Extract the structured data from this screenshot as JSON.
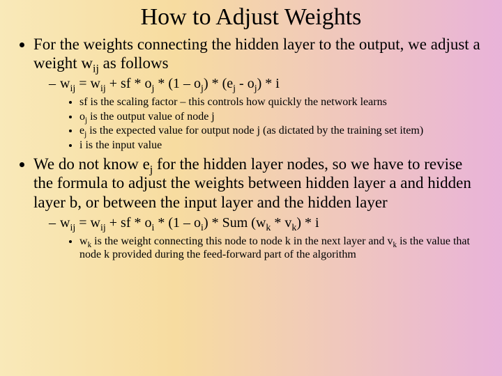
{
  "title": "How to Adjust Weights",
  "b1": "For the weights connecting the hidden layer to the output, we adjust a weight w",
  "b1_sub": "ij",
  "b1_tail": " as follows",
  "f1_a": "w",
  "f1_as": "ij",
  "f1_b": " = w",
  "f1_bs": "ij",
  "f1_c": " + sf * o",
  "f1_cs": "j",
  "f1_d": " * (1 – o",
  "f1_ds": "j",
  "f1_e": ") * (e",
  "f1_es": "j",
  "f1_f": " - o",
  "f1_fs": "j",
  "f1_g": ") * i",
  "s1": "sf is the scaling factor – this controls how quickly the network learns",
  "s2a": "o",
  "s2s": "j",
  "s2b": " is the output value of node j",
  "s3a": "e",
  "s3s": "j",
  "s3b": " is the expected value for output node j (as dictated by the training set item)",
  "s4": "i is the input value",
  "b2a": "We do not know e",
  "b2s": "j",
  "b2b": " for the hidden layer nodes, so we have to revise the formula to adjust the weights between hidden layer a and hidden layer b, or between the input layer and the hidden layer",
  "f2_a": "w",
  "f2_as": "ij",
  "f2_b": " = w",
  "f2_bs": "ij",
  "f2_c": " + sf * o",
  "f2_cs": "i",
  "f2_d": " * (1 – o",
  "f2_ds": "i",
  "f2_e": ") * Sum (w",
  "f2_es": "k",
  "f2_f": " * v",
  "f2_fs": "k",
  "f2_g": ") * i",
  "s5a": "w",
  "s5s1": "k",
  "s5b": " is the weight connecting this node to node k in the next layer and v",
  "s5s2": "k",
  "s5c": " is the value that node k provided during the feed-forward part of the algorithm"
}
